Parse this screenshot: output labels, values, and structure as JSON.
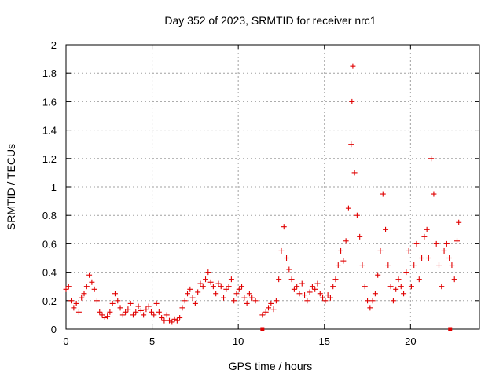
{
  "chart_data": {
    "type": "scatter",
    "title": "Day 352 of 2023, SRMTID for receiver nrc1",
    "xlabel": "GPS time / hours",
    "ylabel": "SRMTID / TECUs",
    "xlim": [
      0,
      24
    ],
    "ylim": [
      0,
      2
    ],
    "x_ticks": [
      0,
      5,
      10,
      15,
      20
    ],
    "x_tick_labels": [
      "0",
      "5",
      "10",
      "15",
      "20"
    ],
    "y_ticks": [
      0,
      0.2,
      0.4,
      0.6,
      0.8,
      1,
      1.2,
      1.4,
      1.6,
      1.8,
      2
    ],
    "y_tick_labels": [
      "0",
      "0.2",
      "0.4",
      "0.6",
      "0.8",
      "1",
      "1.2",
      "1.4",
      "1.6",
      "1.8",
      "2"
    ],
    "grid": true,
    "marker": "plus",
    "series": [
      {
        "name": "nrc1",
        "color": "#e00000",
        "x": [
          0.0,
          0.15,
          0.3,
          0.45,
          0.6,
          0.75,
          0.9,
          1.05,
          1.2,
          1.35,
          1.5,
          1.65,
          1.8,
          1.95,
          2.1,
          2.25,
          2.4,
          2.55,
          2.7,
          2.85,
          3.0,
          3.15,
          3.3,
          3.45,
          3.6,
          3.75,
          3.9,
          4.05,
          4.2,
          4.35,
          4.5,
          4.65,
          4.8,
          4.95,
          5.1,
          5.25,
          5.4,
          5.55,
          5.7,
          5.85,
          6.0,
          6.15,
          6.3,
          6.45,
          6.6,
          6.75,
          6.9,
          7.05,
          7.2,
          7.35,
          7.5,
          7.65,
          7.8,
          7.95,
          8.1,
          8.25,
          8.4,
          8.55,
          8.7,
          8.85,
          9.0,
          9.15,
          9.3,
          9.45,
          9.6,
          9.75,
          9.9,
          10.05,
          10.2,
          10.35,
          10.5,
          10.65,
          10.8,
          11.0,
          11.4,
          11.6,
          11.75,
          11.9,
          12.05,
          12.2,
          12.35,
          12.5,
          12.65,
          12.8,
          12.95,
          13.1,
          13.25,
          13.4,
          13.55,
          13.7,
          13.85,
          14.0,
          14.15,
          14.3,
          14.45,
          14.6,
          14.75,
          14.9,
          15.05,
          15.2,
          15.35,
          15.5,
          15.65,
          15.8,
          15.95,
          16.1,
          16.25,
          16.4,
          16.55,
          16.6,
          16.65,
          16.75,
          16.9,
          17.05,
          17.2,
          17.35,
          17.5,
          17.65,
          17.8,
          17.95,
          18.1,
          18.25,
          18.4,
          18.55,
          18.7,
          18.85,
          19.0,
          19.15,
          19.3,
          19.45,
          19.6,
          19.75,
          19.9,
          20.05,
          20.2,
          20.35,
          20.5,
          20.65,
          20.8,
          20.95,
          21.05,
          21.2,
          21.35,
          21.5,
          21.65,
          21.8,
          21.95,
          22.1,
          22.25,
          22.4,
          22.55,
          22.7,
          22.8
        ],
        "y": [
          0.28,
          0.3,
          0.2,
          0.15,
          0.18,
          0.12,
          0.22,
          0.25,
          0.3,
          0.38,
          0.33,
          0.28,
          0.2,
          0.12,
          0.1,
          0.08,
          0.09,
          0.12,
          0.18,
          0.25,
          0.2,
          0.15,
          0.1,
          0.12,
          0.14,
          0.18,
          0.1,
          0.12,
          0.16,
          0.13,
          0.1,
          0.14,
          0.16,
          0.12,
          0.1,
          0.18,
          0.12,
          0.08,
          0.06,
          0.1,
          0.06,
          0.05,
          0.07,
          0.06,
          0.08,
          0.15,
          0.2,
          0.25,
          0.28,
          0.22,
          0.18,
          0.26,
          0.32,
          0.3,
          0.35,
          0.4,
          0.33,
          0.3,
          0.25,
          0.32,
          0.3,
          0.22,
          0.28,
          0.3,
          0.35,
          0.2,
          0.25,
          0.28,
          0.3,
          0.22,
          0.18,
          0.25,
          0.22,
          0.2,
          0.1,
          0.12,
          0.15,
          0.18,
          0.14,
          0.2,
          0.35,
          0.55,
          0.72,
          0.5,
          0.42,
          0.35,
          0.28,
          0.3,
          0.25,
          0.32,
          0.24,
          0.2,
          0.26,
          0.3,
          0.28,
          0.32,
          0.25,
          0.22,
          0.2,
          0.24,
          0.22,
          0.3,
          0.35,
          0.45,
          0.55,
          0.48,
          0.62,
          0.85,
          1.3,
          1.6,
          1.85,
          1.1,
          0.8,
          0.65,
          0.45,
          0.3,
          0.2,
          0.15,
          0.2,
          0.25,
          0.38,
          0.55,
          0.95,
          0.7,
          0.45,
          0.3,
          0.2,
          0.28,
          0.35,
          0.3,
          0.25,
          0.4,
          0.55,
          0.3,
          0.45,
          0.6,
          0.35,
          0.5,
          0.65,
          0.7,
          0.5,
          1.2,
          0.95,
          0.6,
          0.45,
          0.3,
          0.55,
          0.6,
          0.5,
          0.45,
          0.35,
          0.62,
          0.75
        ]
      }
    ],
    "bottom_markers_x": [
      11.4,
      22.3
    ]
  }
}
